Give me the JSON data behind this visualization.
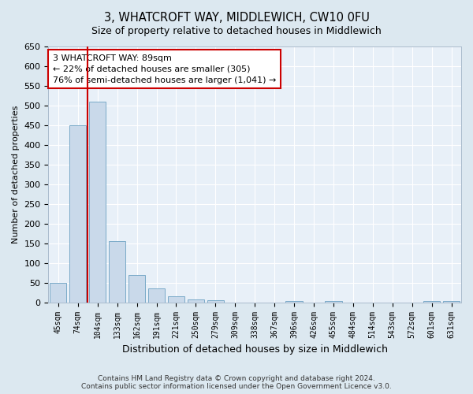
{
  "title": "3, WHATCROFT WAY, MIDDLEWICH, CW10 0FU",
  "subtitle": "Size of property relative to detached houses in Middlewich",
  "xlabel": "Distribution of detached houses by size in Middlewich",
  "ylabel": "Number of detached properties",
  "categories": [
    "45sqm",
    "74sqm",
    "104sqm",
    "133sqm",
    "162sqm",
    "191sqm",
    "221sqm",
    "250sqm",
    "279sqm",
    "309sqm",
    "338sqm",
    "367sqm",
    "396sqm",
    "426sqm",
    "455sqm",
    "484sqm",
    "514sqm",
    "543sqm",
    "572sqm",
    "601sqm",
    "631sqm"
  ],
  "values": [
    50,
    450,
    510,
    155,
    70,
    35,
    15,
    8,
    5,
    0,
    0,
    0,
    3,
    0,
    3,
    0,
    0,
    0,
    0,
    3,
    3
  ],
  "bar_color": "#c9d9ea",
  "bar_edge_color": "#7aaac8",
  "marker_color": "#cc0000",
  "annotation_text": "3 WHATCROFT WAY: 89sqm\n← 22% of detached houses are smaller (305)\n76% of semi-detached houses are larger (1,041) →",
  "annotation_box_edge_color": "#cc0000",
  "ylim": [
    0,
    650
  ],
  "yticks": [
    0,
    50,
    100,
    150,
    200,
    250,
    300,
    350,
    400,
    450,
    500,
    550,
    600,
    650
  ],
  "footer_line1": "Contains HM Land Registry data © Crown copyright and database right 2024.",
  "footer_line2": "Contains public sector information licensed under the Open Government Licence v3.0.",
  "bg_color": "#dce8f0",
  "plot_bg_color": "#e8f0f8"
}
